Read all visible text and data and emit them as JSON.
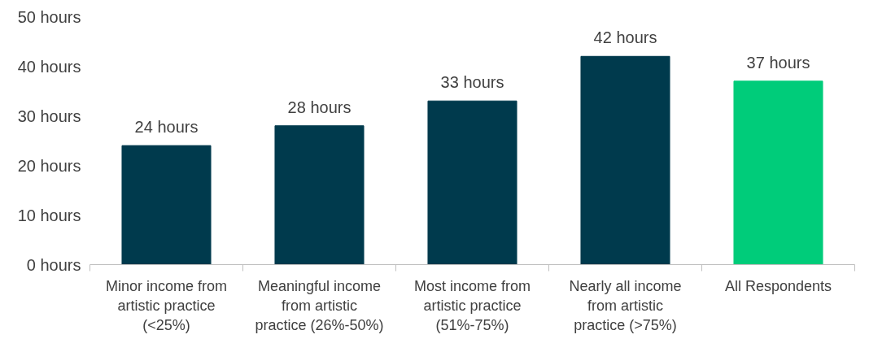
{
  "chart_data": {
    "type": "bar",
    "categories": [
      "Minor income from artistic practice (<25%)",
      "Meaningful income from artistic practice (26%-50%)",
      "Most income from artistic practice (51%-75%)",
      "Nearly all income from artistic practice (>75%)",
      "All Respondents"
    ],
    "values": [
      24,
      28,
      33,
      42,
      37
    ],
    "colors": [
      "#003a4d",
      "#003a4d",
      "#003a4d",
      "#003a4d",
      "#00cc7a"
    ],
    "value_labels": [
      "24 hours",
      "28 hours",
      "33 hours",
      "42 hours",
      "37 hours"
    ],
    "ylim": [
      0,
      50
    ],
    "yticks": [
      {
        "value": 0,
        "label": "0 hours"
      },
      {
        "value": 10,
        "label": "10 hours"
      },
      {
        "value": 20,
        "label": "20 hours"
      },
      {
        "value": 30,
        "label": "30 hours"
      },
      {
        "value": 40,
        "label": "40 hours"
      },
      {
        "value": 50,
        "label": "50 hours"
      }
    ],
    "grid": false
  }
}
